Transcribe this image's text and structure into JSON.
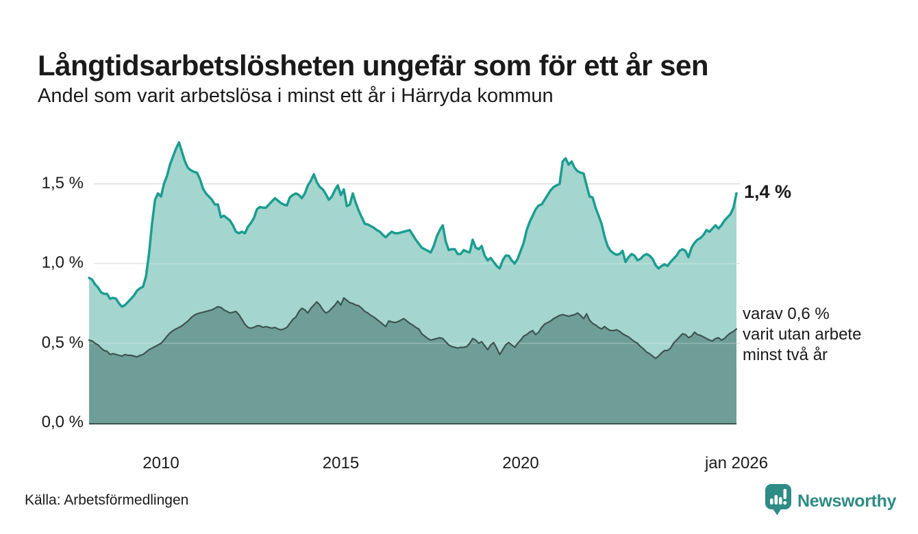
{
  "header": {
    "title": "Långtidsarbetslösheten ungefär som för ett år sen",
    "subtitle": "Andel som varit arbetslösa i minst ett år i Härryda kommun"
  },
  "annotations": {
    "end_value_label": "1,4 %",
    "series2_lines": [
      "varav 0,6 %",
      "varit utan arbete",
      "minst två år"
    ]
  },
  "footer": {
    "source": "Källa: Arbetsförmedlingen",
    "logo_text": "Newsworthy",
    "logo_icon": "bar-chart-speech-bubble-icon"
  },
  "chart_data": {
    "type": "area",
    "title": "Andel som varit arbetslösa i minst ett år i Härryda kommun",
    "x_start": "2008-01",
    "x_end": "2026-01",
    "x_interval": "monthly",
    "ylim": [
      0,
      1.75
    ],
    "unit": "%",
    "grid": true,
    "y_ticks": [
      {
        "label": "0,0 %",
        "value": 0.0
      },
      {
        "label": "0,5 %",
        "value": 0.5
      },
      {
        "label": "1,0 %",
        "value": 1.0
      },
      {
        "label": "1,5 %",
        "value": 1.5
      }
    ],
    "x_ticks": [
      {
        "label": "2010",
        "month": 24
      },
      {
        "label": "2015",
        "month": 84
      },
      {
        "label": "2020",
        "month": 144
      },
      {
        "label": "jan 2026",
        "month": 216
      }
    ],
    "style": {
      "grid_color": "#dbdddd",
      "overlay_grid_color": "rgba(255,255,255,0.28)",
      "baseline_color": "#3e534f",
      "background": "#ffffff"
    },
    "series": [
      {
        "name": "Andel arbetslösa minst ett år",
        "line_color": "#1b9d90",
        "fill_color": "#a4d5ce",
        "line_width": 3.5,
        "end_value": 1.4,
        "values": [
          0.91,
          0.9,
          0.87,
          0.85,
          0.82,
          0.81,
          0.81,
          0.78,
          0.785,
          0.78,
          0.75,
          0.73,
          0.74,
          0.76,
          0.78,
          0.8,
          0.83,
          0.845,
          0.855,
          0.92,
          1.06,
          1.25,
          1.4,
          1.44,
          1.42,
          1.5,
          1.55,
          1.62,
          1.67,
          1.72,
          1.76,
          1.7,
          1.64,
          1.6,
          1.585,
          1.575,
          1.57,
          1.53,
          1.47,
          1.44,
          1.42,
          1.4,
          1.37,
          1.37,
          1.29,
          1.3,
          1.285,
          1.27,
          1.24,
          1.2,
          1.19,
          1.2,
          1.19,
          1.23,
          1.255,
          1.285,
          1.34,
          1.355,
          1.35,
          1.35,
          1.37,
          1.39,
          1.41,
          1.395,
          1.38,
          1.37,
          1.365,
          1.415,
          1.43,
          1.44,
          1.43,
          1.41,
          1.44,
          1.49,
          1.52,
          1.56,
          1.51,
          1.48,
          1.465,
          1.435,
          1.4,
          1.42,
          1.46,
          1.49,
          1.43,
          1.465,
          1.36,
          1.37,
          1.44,
          1.38,
          1.33,
          1.29,
          1.25,
          1.245,
          1.235,
          1.225,
          1.21,
          1.2,
          1.18,
          1.165,
          1.185,
          1.2,
          1.19,
          1.19,
          1.195,
          1.2,
          1.205,
          1.21,
          1.18,
          1.15,
          1.125,
          1.1,
          1.09,
          1.08,
          1.07,
          1.11,
          1.17,
          1.21,
          1.24,
          1.14,
          1.085,
          1.09,
          1.09,
          1.06,
          1.06,
          1.085,
          1.075,
          1.07,
          1.15,
          1.1,
          1.09,
          1.11,
          1.05,
          1.02,
          1.035,
          1.01,
          0.985,
          0.97,
          1.02,
          1.05,
          1.05,
          1.02,
          1.0,
          1.03,
          1.08,
          1.13,
          1.21,
          1.26,
          1.3,
          1.34,
          1.365,
          1.37,
          1.4,
          1.43,
          1.46,
          1.48,
          1.49,
          1.5,
          1.64,
          1.66,
          1.62,
          1.64,
          1.6,
          1.58,
          1.57,
          1.565,
          1.49,
          1.42,
          1.415,
          1.35,
          1.3,
          1.25,
          1.17,
          1.11,
          1.08,
          1.065,
          1.055,
          1.06,
          1.08,
          1.01,
          1.04,
          1.06,
          1.05,
          1.02,
          1.03,
          1.05,
          1.06,
          1.05,
          1.03,
          0.99,
          0.97,
          0.985,
          0.995,
          0.985,
          1.01,
          1.03,
          1.05,
          1.08,
          1.09,
          1.08,
          1.04,
          1.1,
          1.13,
          1.15,
          1.16,
          1.18,
          1.21,
          1.2,
          1.22,
          1.24,
          1.22,
          1.24,
          1.27,
          1.29,
          1.31,
          1.35,
          1.44
        ]
      },
      {
        "name": "Andel utan arbete minst två år",
        "line_color": "#3e534f",
        "fill_color": "#6f9e99",
        "line_width": 2.2,
        "end_value": 0.6,
        "values": [
          0.52,
          0.515,
          0.5,
          0.49,
          0.47,
          0.455,
          0.45,
          0.43,
          0.435,
          0.43,
          0.425,
          0.42,
          0.43,
          0.425,
          0.425,
          0.42,
          0.415,
          0.425,
          0.43,
          0.445,
          0.46,
          0.47,
          0.48,
          0.49,
          0.5,
          0.52,
          0.545,
          0.565,
          0.58,
          0.59,
          0.6,
          0.61,
          0.625,
          0.64,
          0.66,
          0.675,
          0.685,
          0.69,
          0.695,
          0.7,
          0.705,
          0.71,
          0.72,
          0.73,
          0.725,
          0.71,
          0.7,
          0.69,
          0.695,
          0.7,
          0.68,
          0.65,
          0.62,
          0.6,
          0.595,
          0.6,
          0.61,
          0.61,
          0.6,
          0.605,
          0.6,
          0.595,
          0.6,
          0.59,
          0.585,
          0.59,
          0.6,
          0.625,
          0.65,
          0.665,
          0.7,
          0.72,
          0.71,
          0.69,
          0.72,
          0.74,
          0.76,
          0.74,
          0.71,
          0.69,
          0.7,
          0.72,
          0.74,
          0.765,
          0.74,
          0.785,
          0.77,
          0.755,
          0.75,
          0.74,
          0.735,
          0.72,
          0.7,
          0.69,
          0.675,
          0.665,
          0.65,
          0.635,
          0.62,
          0.605,
          0.64,
          0.635,
          0.63,
          0.635,
          0.645,
          0.655,
          0.64,
          0.625,
          0.615,
          0.6,
          0.59,
          0.56,
          0.545,
          0.53,
          0.52,
          0.525,
          0.53,
          0.535,
          0.53,
          0.51,
          0.49,
          0.48,
          0.475,
          0.47,
          0.475,
          0.475,
          0.48,
          0.5,
          0.53,
          0.52,
          0.5,
          0.51,
          0.485,
          0.46,
          0.49,
          0.505,
          0.47,
          0.43,
          0.46,
          0.49,
          0.505,
          0.49,
          0.475,
          0.5,
          0.52,
          0.545,
          0.555,
          0.57,
          0.58,
          0.555,
          0.57,
          0.6,
          0.62,
          0.63,
          0.64,
          0.655,
          0.665,
          0.675,
          0.68,
          0.675,
          0.67,
          0.675,
          0.68,
          0.69,
          0.675,
          0.655,
          0.685,
          0.645,
          0.625,
          0.615,
          0.6,
          0.59,
          0.605,
          0.59,
          0.58,
          0.58,
          0.585,
          0.575,
          0.56,
          0.55,
          0.54,
          0.525,
          0.51,
          0.5,
          0.48,
          0.465,
          0.445,
          0.435,
          0.42,
          0.405,
          0.42,
          0.44,
          0.455,
          0.455,
          0.47,
          0.5,
          0.52,
          0.54,
          0.56,
          0.555,
          0.535,
          0.545,
          0.57,
          0.555,
          0.55,
          0.54,
          0.53,
          0.52,
          0.515,
          0.53,
          0.535,
          0.52,
          0.53,
          0.55,
          0.565,
          0.575,
          0.59
        ]
      }
    ]
  }
}
